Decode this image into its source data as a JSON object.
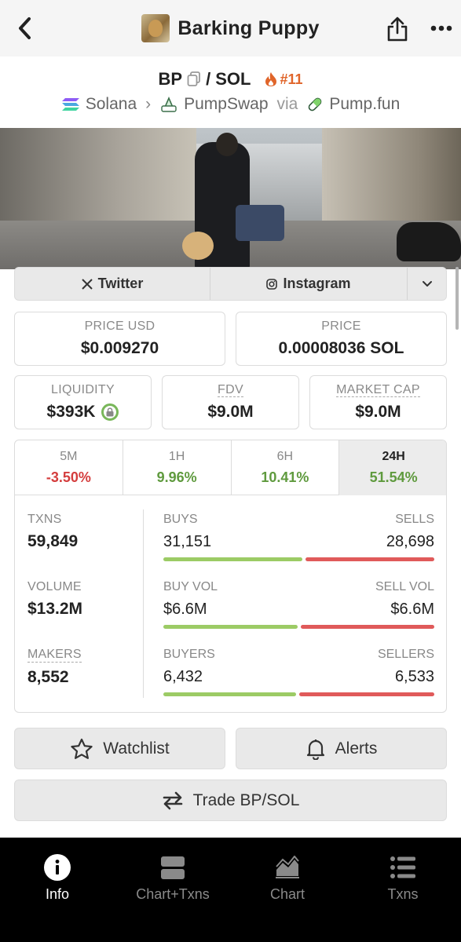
{
  "header": {
    "title": "Barking Puppy",
    "avatar_icon": "barking-puppy-token-avatar",
    "share_icon": "share-icon",
    "more_icon": "more-dots-icon"
  },
  "pair": {
    "base": "BP",
    "separator": "/",
    "quote": "SOL",
    "rank": "#11"
  },
  "chain": {
    "network": "Solana",
    "dex": "PumpSwap",
    "via_label": "via",
    "launchpad": "Pump.fun"
  },
  "socials": {
    "twitter": "Twitter",
    "instagram": "Instagram"
  },
  "prices": {
    "price_usd_label": "PRICE USD",
    "price_usd": "$0.009270",
    "price_label": "PRICE",
    "price": "0.00008036 SOL"
  },
  "market": {
    "liquidity_label": "LIQUIDITY",
    "liquidity": "$393K",
    "fdv_label": "FDV",
    "fdv": "$9.0M",
    "mcap_label": "MARKET CAP",
    "mcap": "$9.0M"
  },
  "periods": [
    {
      "label": "5M",
      "change": "-3.50%",
      "direction": "down"
    },
    {
      "label": "1H",
      "change": "9.96%",
      "direction": "up"
    },
    {
      "label": "6H",
      "change": "10.41%",
      "direction": "up"
    },
    {
      "label": "24H",
      "change": "51.54%",
      "direction": "up",
      "active": true
    }
  ],
  "stats": {
    "txns_label": "TXNS",
    "txns": "59,849",
    "volume_label": "VOLUME",
    "volume": "$13.2M",
    "makers_label": "MAKERS",
    "makers": "8,552",
    "buys_label": "BUYS",
    "buys": "31,151",
    "sells_label": "SELLS",
    "sells": "28,698",
    "buys_share": 0.52,
    "buy_vol_label": "BUY VOL",
    "buy_vol": "$6.6M",
    "sell_vol_label": "SELL VOL",
    "sell_vol": "$6.6M",
    "vol_share": 0.5,
    "buyers_label": "BUYERS",
    "buyers": "6,432",
    "sellers_label": "SELLERS",
    "sellers": "6,533",
    "buyers_share": 0.496
  },
  "actions": {
    "watchlist": "Watchlist",
    "alerts": "Alerts",
    "trade": "Trade BP/SOL"
  },
  "tabs": [
    {
      "label": "Info",
      "icon": "info-icon",
      "active": true
    },
    {
      "label": "Chart+Txns",
      "icon": "chart-txns-icon"
    },
    {
      "label": "Chart",
      "icon": "area-chart-icon"
    },
    {
      "label": "Txns",
      "icon": "list-icon"
    }
  ],
  "colors": {
    "positive": "#5f9a3e",
    "negative": "#d43d3d",
    "buy_bar": "#9ccb65",
    "sell_bar": "#e05a5a",
    "rank": "#e0652a"
  }
}
